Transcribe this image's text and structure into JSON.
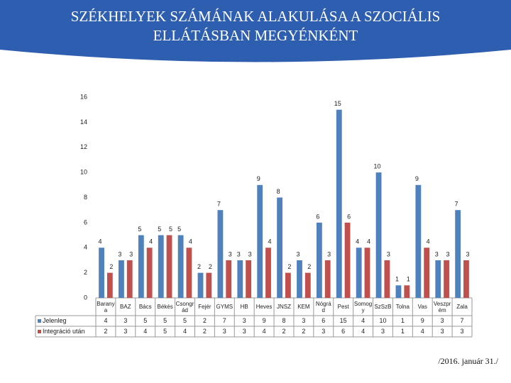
{
  "chart_data": {
    "type": "bar",
    "title": "SZÉKHELYEK SZÁMÁNAK ALAKULÁSA A SZOCIÁLIS ELLÁTÁSBAN MEGYÉNKÉNT",
    "categories": [
      "Baranya",
      "BAZ",
      "Bács",
      "Békés",
      "Csongrád",
      "Fejér",
      "GYMS",
      "HB",
      "Heves",
      "JNSZ",
      "KEM",
      "Nógrád",
      "Pest",
      "Somogy",
      "SzSzB",
      "Tolna",
      "Vas",
      "Veszprém",
      "Zala"
    ],
    "series": [
      {
        "name": "Jelenleg",
        "color": "#4f81bd",
        "values": [
          4,
          3,
          5,
          5,
          5,
          2,
          7,
          3,
          9,
          8,
          3,
          6,
          15,
          4,
          10,
          1,
          9,
          3,
          7
        ]
      },
      {
        "name": "Integráció után",
        "color": "#c0504d",
        "values": [
          2,
          3,
          4,
          5,
          4,
          2,
          3,
          3,
          4,
          2,
          2,
          3,
          6,
          4,
          3,
          1,
          4,
          3,
          3
        ]
      }
    ],
    "ylim": [
      0,
      16
    ],
    "yticks": [
      0,
      2,
      4,
      6,
      8,
      10,
      12,
      14,
      16
    ],
    "grid": false,
    "footnote": "/2016. január 31./"
  }
}
